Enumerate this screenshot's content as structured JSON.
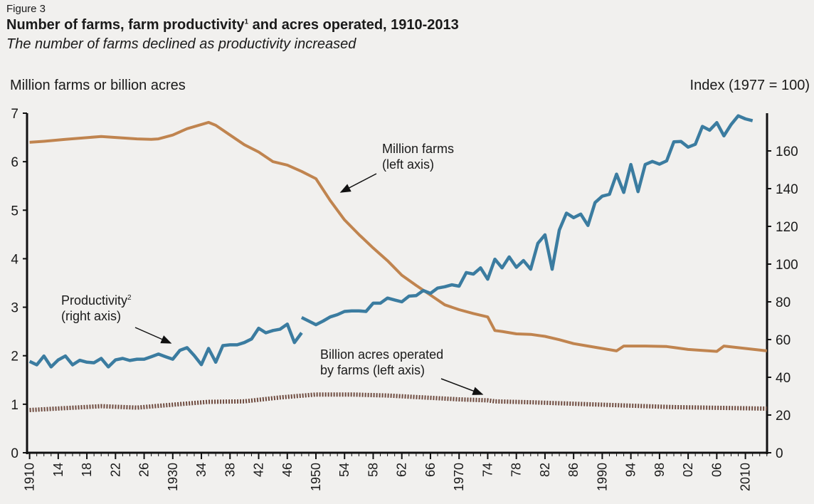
{
  "figure_label": "Figure 3",
  "title": "Number of farms, farm productivity",
  "title_sup": "1",
  "title_rest": " and acres operated, 1910-2013",
  "subtitle": "The number of farms declined as productivity increased",
  "colors": {
    "farms": "#c0844f",
    "productivity": "#3b7ca0",
    "acres": "#6e4a3e",
    "background": "#f1f0ee"
  },
  "chart_data": {
    "type": "line",
    "title": "Number of farms, farm productivity1 and acres operated, 1910-2013",
    "ylabel_left": "Million farms or billion acres",
    "ylabel_right": "Index (1977 = 100)",
    "ylim_left": [
      0,
      7
    ],
    "ylim_right": [
      0,
      180
    ],
    "xlim": [
      1910,
      2013
    ],
    "yticks_left": [
      "0",
      "1",
      "2",
      "3",
      "4",
      "5",
      "6",
      "7"
    ],
    "yticks_right": [
      "0",
      "20",
      "40",
      "60",
      "80",
      "100",
      "120",
      "140",
      "160"
    ],
    "xtick_labels": [
      "1910",
      "14",
      "18",
      "22",
      "26",
      "1930",
      "34",
      "38",
      "42",
      "46",
      "1950",
      "54",
      "58",
      "62",
      "66",
      "1970",
      "74",
      "78",
      "82",
      "86",
      "1990",
      "94",
      "98",
      "02",
      "06",
      "2010"
    ],
    "grid": false,
    "annotations": {
      "farms": [
        "Million farms",
        "(left axis)"
      ],
      "productivity": [
        "Productivity",
        "2",
        "(right axis)"
      ],
      "acres": [
        "Billion acres operated",
        "by farms (left axis)"
      ]
    },
    "series": [
      {
        "name": "Million farms (left axis)",
        "axis": "left",
        "style": "solid",
        "x": [
          1910,
          1912,
          1915,
          1920,
          1925,
          1927,
          1928,
          1930,
          1932,
          1935,
          1936,
          1938,
          1940,
          1942,
          1944,
          1946,
          1948,
          1950,
          1952,
          1954,
          1956,
          1958,
          1960,
          1962,
          1964,
          1966,
          1968,
          1970,
          1972,
          1974,
          1975,
          1976,
          1978,
          1980,
          1982,
          1984,
          1986,
          1988,
          1990,
          1992,
          1993,
          1996,
          1999,
          2000,
          2002,
          2004,
          2006,
          2007,
          2010,
          2013
        ],
        "values": [
          6.4,
          6.42,
          6.46,
          6.52,
          6.47,
          6.46,
          6.47,
          6.55,
          6.68,
          6.81,
          6.75,
          6.55,
          6.35,
          6.2,
          6.0,
          5.93,
          5.8,
          5.65,
          5.2,
          4.8,
          4.5,
          4.22,
          3.96,
          3.66,
          3.45,
          3.25,
          3.05,
          2.95,
          2.87,
          2.8,
          2.52,
          2.5,
          2.45,
          2.44,
          2.4,
          2.33,
          2.25,
          2.2,
          2.15,
          2.1,
          2.2,
          2.2,
          2.19,
          2.17,
          2.13,
          2.11,
          2.09,
          2.2,
          2.15,
          2.1
        ]
      },
      {
        "name": "Productivity (right axis)",
        "axis": "right",
        "style": "solid",
        "segments": [
          {
            "x": [
              1910,
              1911,
              1912,
              1913,
              1914,
              1915,
              1916,
              1917,
              1918,
              1919,
              1920,
              1921,
              1922,
              1923,
              1924,
              1925,
              1926,
              1927,
              1928,
              1929,
              1930,
              1931,
              1932,
              1933,
              1934,
              1935,
              1936,
              1937,
              1938,
              1939,
              1940,
              1941,
              1942,
              1943,
              1944,
              1945,
              1946,
              1947,
              1948
            ],
            "values": [
              48.4,
              46.6,
              51.3,
              45.5,
              49.2,
              51.3,
              46.6,
              49,
              48,
              47.7,
              50,
              45.5,
              49.2,
              50,
              48.9,
              49.6,
              49.6,
              50.9,
              52.3,
              50.9,
              49.6,
              54.3,
              55.7,
              51.5,
              46.7,
              55.3,
              48,
              56.8,
              57.2,
              57.2,
              58.4,
              60.3,
              66,
              63.6,
              64.8,
              65.5,
              68.2,
              58.4,
              63.6
            ]
          },
          {
            "x": [
              1948,
              1949,
              1950,
              1951,
              1952,
              1953,
              1954,
              1955,
              1956,
              1957,
              1958,
              1959,
              1960,
              1961,
              1962,
              1963,
              1964,
              1965,
              1966,
              1967,
              1968,
              1969,
              1970,
              1971,
              1972,
              1973,
              1974,
              1975,
              1976,
              1977,
              1978,
              1979,
              1980,
              1981,
              1982,
              1983,
              1984,
              1985,
              1986,
              1987,
              1988,
              1989,
              1990,
              1991,
              1992,
              1993,
              1994,
              1995,
              1996,
              1997,
              1998,
              1999,
              2000,
              2001,
              2002,
              2003,
              2004,
              2005,
              2006,
              2007,
              2008,
              2009,
              2010,
              2011
            ],
            "values": [
              71.7,
              69.8,
              67.9,
              69.8,
              72,
              73.2,
              74.9,
              75.2,
              75.2,
              74.9,
              79.3,
              79.3,
              82,
              81,
              80,
              83,
              83.3,
              86,
              84.5,
              87.3,
              88,
              89,
              88.3,
              95.5,
              94.7,
              98,
              92,
              102.6,
              98,
              103.8,
              98.3,
              101.9,
              97.3,
              111,
              115.5,
              97.3,
              118,
              127,
              124.6,
              126.5,
              120.5,
              132.6,
              136,
              137,
              147.7,
              138,
              152.8,
              138.4,
              152.8,
              154.4,
              153,
              154.7,
              164.8,
              165,
              162,
              163.5,
              173,
              171,
              175,
              168,
              174,
              178.6,
              177,
              176
            ]
          }
        ]
      },
      {
        "name": "Billion acres operated by farms (left axis)",
        "axis": "left",
        "style": "dotted",
        "x": [
          1910,
          1920,
          1925,
          1930,
          1935,
          1940,
          1945,
          1950,
          1955,
          1960,
          1965,
          1970,
          1974,
          1975,
          1980,
          1990,
          2000,
          2013
        ],
        "values": [
          0.88,
          0.96,
          0.93,
          0.99,
          1.05,
          1.06,
          1.14,
          1.2,
          1.2,
          1.18,
          1.14,
          1.1,
          1.08,
          1.06,
          1.04,
          0.99,
          0.94,
          0.91
        ]
      }
    ]
  }
}
